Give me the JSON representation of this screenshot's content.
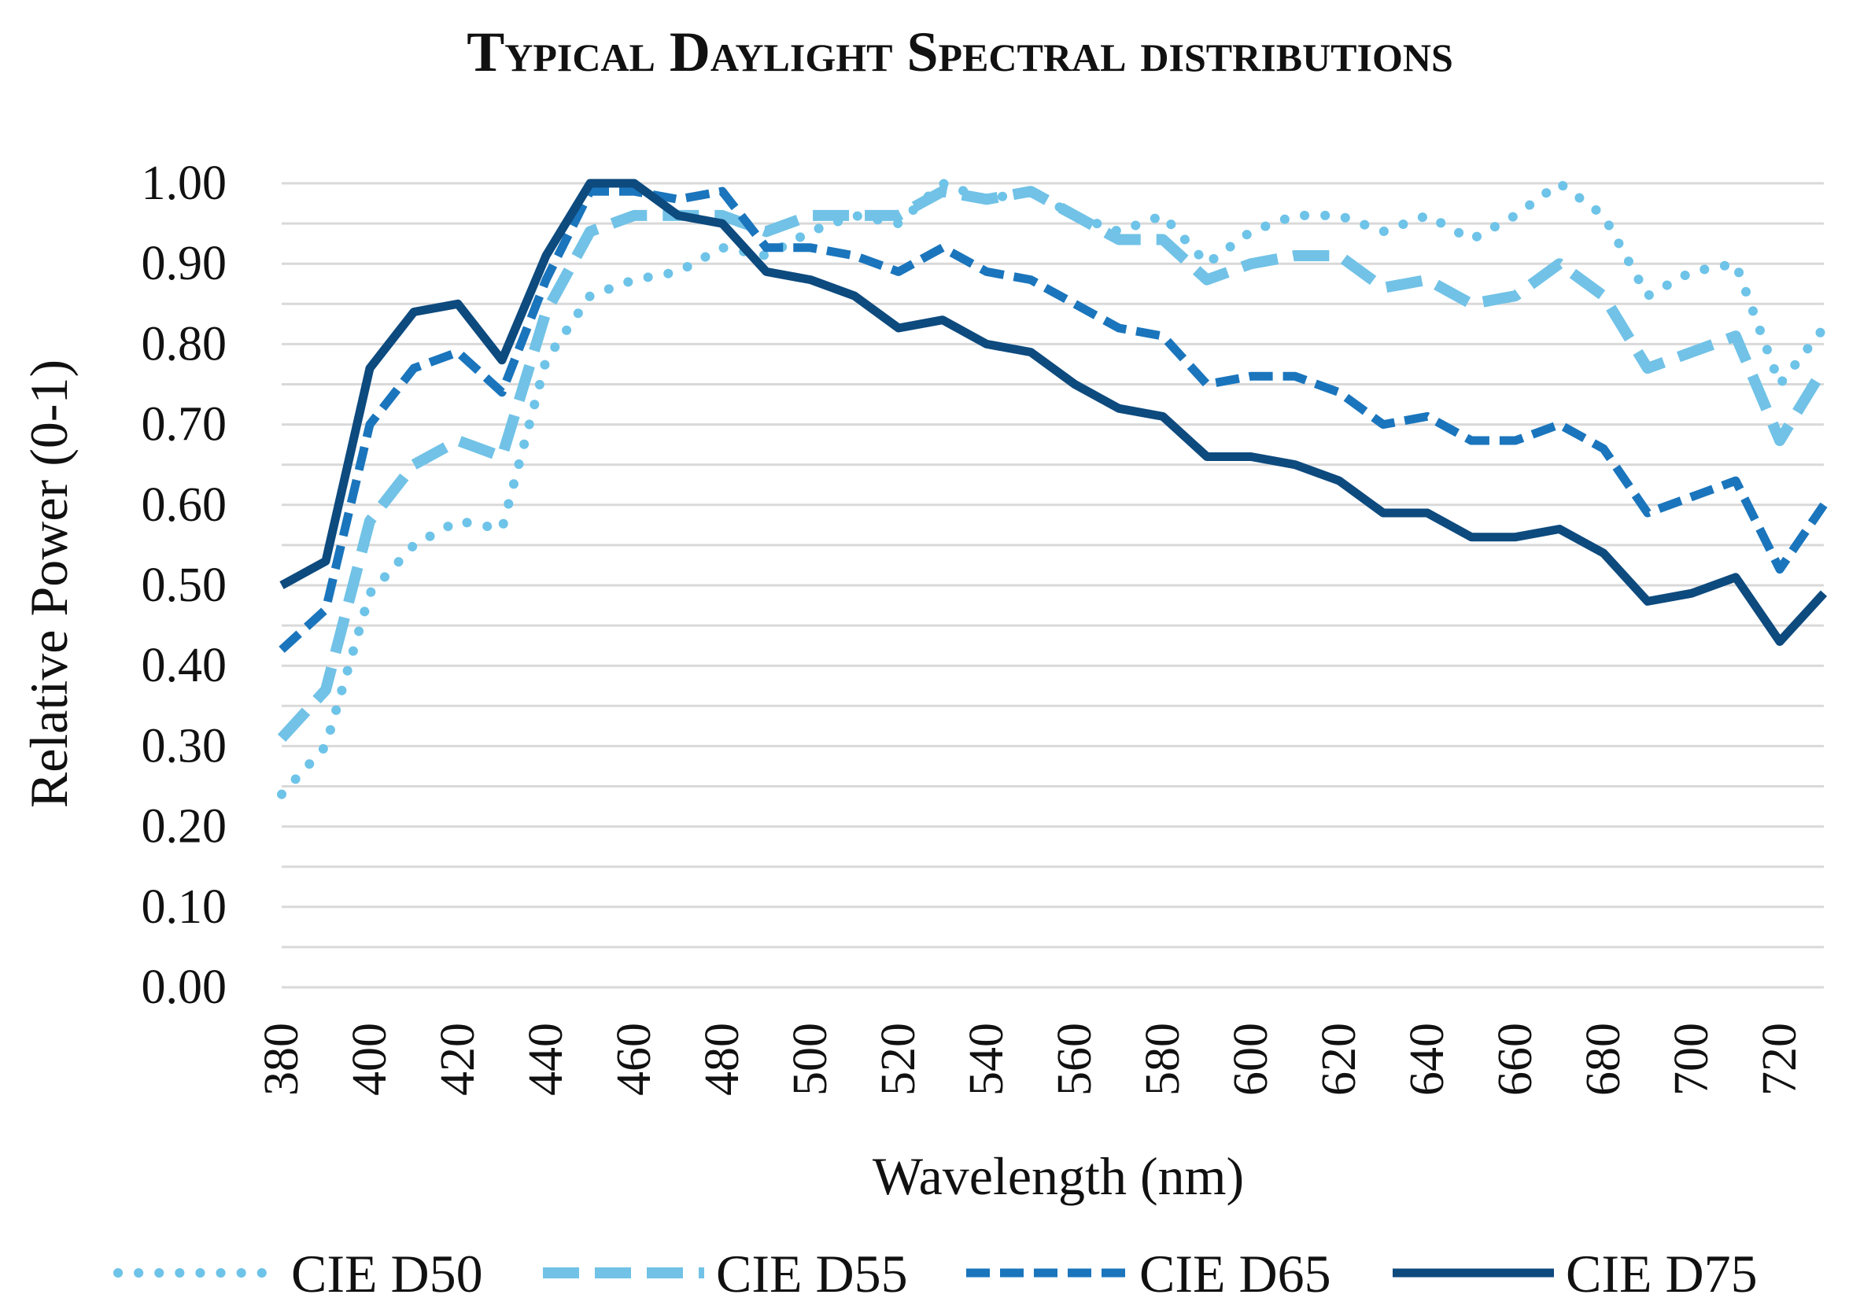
{
  "chart_data": {
    "type": "line",
    "title": "Typical Daylight Spectral distributions",
    "xlabel": "Wavelength (nm)",
    "ylabel": "Relative Power (0-1)",
    "ylim": [
      0,
      1
    ],
    "grid": true,
    "legend_position": "bottom",
    "x": [
      380,
      390,
      400,
      410,
      420,
      430,
      440,
      450,
      460,
      470,
      480,
      490,
      500,
      510,
      520,
      530,
      540,
      550,
      560,
      570,
      580,
      590,
      600,
      610,
      620,
      630,
      640,
      650,
      660,
      670,
      680,
      690,
      700,
      710,
      720,
      730
    ],
    "x_tick_labels": [
      "380",
      "400",
      "420",
      "440",
      "460",
      "480",
      "500",
      "520",
      "540",
      "560",
      "580",
      "600",
      "620",
      "640",
      "660",
      "680",
      "700",
      "720"
    ],
    "y_tick_labels": [
      "0.00",
      "0.10",
      "0.20",
      "0.30",
      "0.40",
      "0.50",
      "0.60",
      "0.70",
      "0.80",
      "0.90",
      "1.00"
    ],
    "series": [
      {
        "name": "CIE D50",
        "color": "#6ec3e8",
        "style": "dotted",
        "values": [
          0.24,
          0.3,
          0.49,
          0.55,
          0.58,
          0.57,
          0.78,
          0.86,
          0.88,
          0.89,
          0.92,
          0.91,
          0.94,
          0.96,
          0.95,
          1.0,
          0.98,
          0.99,
          0.96,
          0.94,
          0.96,
          0.9,
          0.94,
          0.96,
          0.96,
          0.94,
          0.96,
          0.93,
          0.96,
          1.0,
          0.96,
          0.86,
          0.89,
          0.9,
          0.75,
          0.82
        ]
      },
      {
        "name": "CIE D55",
        "color": "#71c2e6",
        "style": "dashed",
        "values": [
          0.31,
          0.37,
          0.58,
          0.65,
          0.68,
          0.66,
          0.84,
          0.94,
          0.96,
          0.96,
          0.96,
          0.94,
          0.96,
          0.96,
          0.96,
          0.99,
          0.98,
          0.99,
          0.96,
          0.93,
          0.93,
          0.88,
          0.9,
          0.91,
          0.91,
          0.87,
          0.88,
          0.85,
          0.86,
          0.9,
          0.86,
          0.77,
          0.79,
          0.81,
          0.68,
          0.77
        ]
      },
      {
        "name": "CIE D65",
        "color": "#1a75bc",
        "style": "dashed",
        "values": [
          0.42,
          0.47,
          0.7,
          0.77,
          0.79,
          0.74,
          0.88,
          0.99,
          0.99,
          0.98,
          0.99,
          0.92,
          0.92,
          0.91,
          0.89,
          0.92,
          0.89,
          0.88,
          0.85,
          0.82,
          0.81,
          0.75,
          0.76,
          0.76,
          0.74,
          0.7,
          0.71,
          0.68,
          0.68,
          0.7,
          0.67,
          0.59,
          0.61,
          0.63,
          0.52,
          0.6
        ]
      },
      {
        "name": "CIE D75",
        "color": "#0d4a7e",
        "style": "solid",
        "values": [
          0.5,
          0.53,
          0.77,
          0.84,
          0.85,
          0.78,
          0.91,
          1.0,
          1.0,
          0.96,
          0.95,
          0.89,
          0.88,
          0.86,
          0.82,
          0.83,
          0.8,
          0.79,
          0.75,
          0.72,
          0.71,
          0.66,
          0.66,
          0.65,
          0.63,
          0.59,
          0.59,
          0.56,
          0.56,
          0.57,
          0.54,
          0.48,
          0.49,
          0.51,
          0.43,
          0.49
        ]
      }
    ]
  }
}
